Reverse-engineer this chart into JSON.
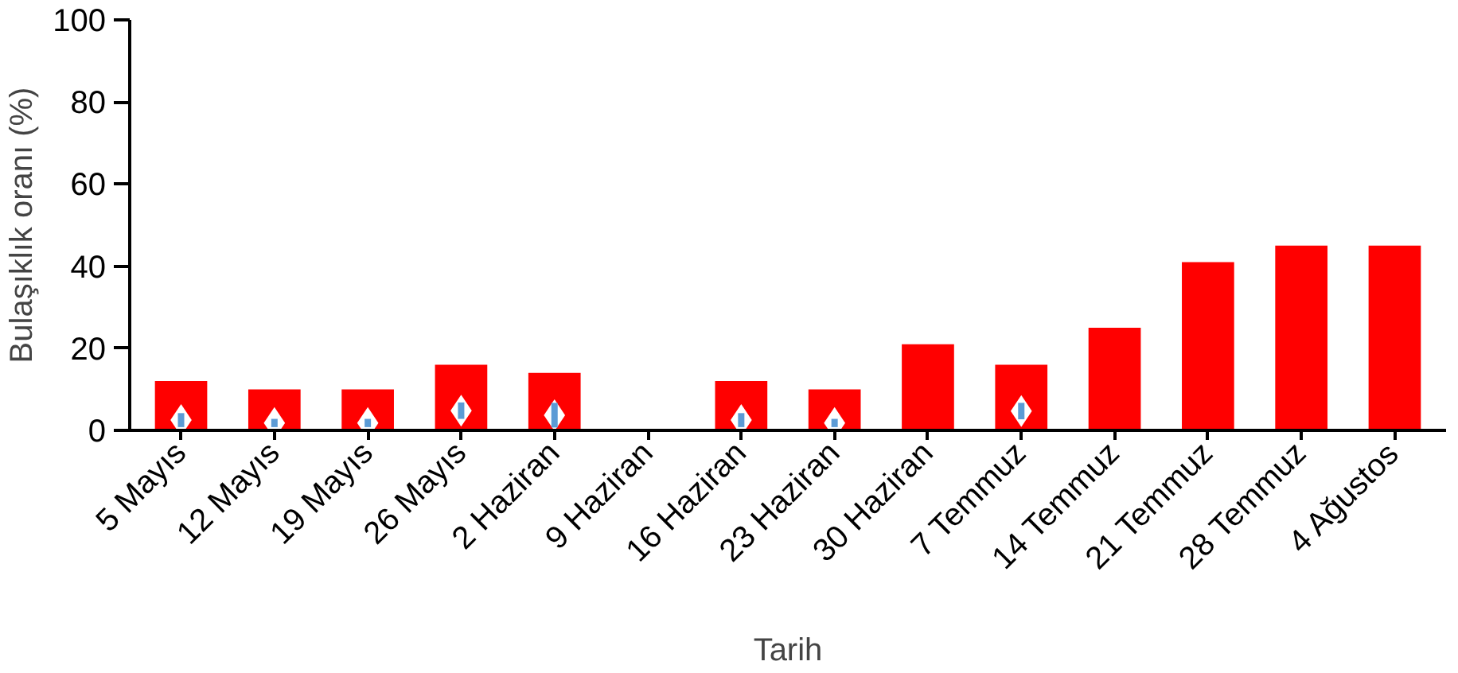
{
  "chart_data": {
    "type": "bar",
    "xlabel": "Tarih",
    "ylabel": "Bulaşıklık oranı (%)",
    "categories": [
      "5 Mayıs",
      "12 Mayıs",
      "19 Mayıs",
      "26 Mayıs",
      "2 Haziran",
      "9 Haziran",
      "16 Haziran",
      "23 Haziran",
      "30 Haziran",
      "7 Temmuz",
      "14 Temmuz",
      "21 Temmuz",
      "28 Temmuz",
      "4 Ağustos"
    ],
    "series": [
      {
        "color": "#ff0000",
        "values": [
          12,
          10,
          10,
          16,
          14,
          0,
          12,
          10,
          21,
          16,
          25,
          41,
          45,
          45
        ]
      },
      {
        "type": "scatter",
        "color": "#ffffff",
        "marker": "diamond",
        "values": [
          2.5,
          1.8,
          1.8,
          4.8,
          3.7,
          null,
          2.5,
          1.8,
          null,
          4.7,
          null,
          null,
          null,
          null
        ],
        "errors": [
          1.7,
          1,
          1,
          2,
          3,
          null,
          1.7,
          1,
          null,
          2,
          null,
          null,
          null,
          null
        ]
      }
    ],
    "ylim": [
      0,
      100
    ],
    "yticks": [
      0,
      20,
      40,
      60,
      80,
      100
    ],
    "grid": false
  }
}
